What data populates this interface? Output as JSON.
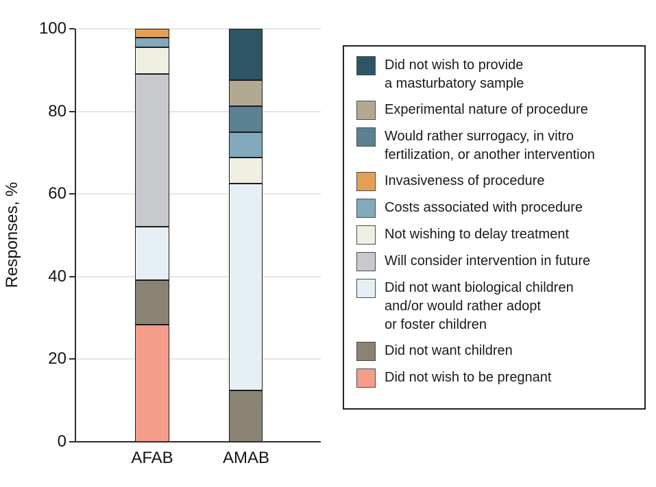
{
  "chart_data": {
    "type": "bar",
    "stacked": true,
    "title": "",
    "ylabel": "Responses, %",
    "xlabel": "",
    "ylim": [
      0,
      100
    ],
    "yticks": [
      0,
      20,
      40,
      60,
      80,
      100
    ],
    "grid": "horizontal",
    "legend_position": "right",
    "categories": [
      "AFAB",
      "AMAB"
    ],
    "series": [
      {
        "name": "Did not wish to provide a masturbatory sample",
        "label_lines": [
          "Did not wish to provide",
          "a masturbatory sample"
        ],
        "color": "#2E5565",
        "values": [
          0,
          12.5
        ]
      },
      {
        "name": "Experimental nature of procedure",
        "label_lines": [
          "Experimental nature of procedure"
        ],
        "color": "#B3A992",
        "values": [
          0,
          6.25
        ]
      },
      {
        "name": "Would rather surrogacy, in vitro fertilization, or another intervention",
        "label_lines": [
          "Would rather surrogacy, in vitro",
          "fertilization, or another intervention"
        ],
        "color": "#5C8193",
        "values": [
          0,
          6.25
        ]
      },
      {
        "name": "Invasiveness of procedure",
        "label_lines": [
          "Invasiveness of procedure"
        ],
        "color": "#E3A055",
        "values": [
          2.2,
          0
        ]
      },
      {
        "name": "Costs associated with procedure",
        "label_lines": [
          "Costs associated with procedure"
        ],
        "color": "#82A9BC",
        "values": [
          2.2,
          6.25
        ]
      },
      {
        "name": "Not wishing to delay treatment",
        "label_lines": [
          "Not wishing to delay treatment"
        ],
        "color": "#EFEFE2",
        "values": [
          6.5,
          6.25
        ]
      },
      {
        "name": "Will consider intervention in future",
        "label_lines": [
          "Will consider intervention in future"
        ],
        "color": "#C8C9CC",
        "values": [
          37.0,
          0
        ]
      },
      {
        "name": "Did not want biological children and/or would rather adopt or foster children",
        "label_lines": [
          "Did not want biological children",
          "and/or would rather adopt",
          "or foster children"
        ],
        "color": "#E6EFF4",
        "values": [
          13.0,
          50.0
        ]
      },
      {
        "name": "Did not want children",
        "label_lines": [
          "Did not want children"
        ],
        "color": "#8A8273",
        "values": [
          10.9,
          12.5
        ]
      },
      {
        "name": "Did not wish to be pregnant",
        "label_lines": [
          "Did not wish to be pregnant"
        ],
        "color": "#F49D8B",
        "values": [
          28.3,
          0
        ]
      }
    ]
  }
}
